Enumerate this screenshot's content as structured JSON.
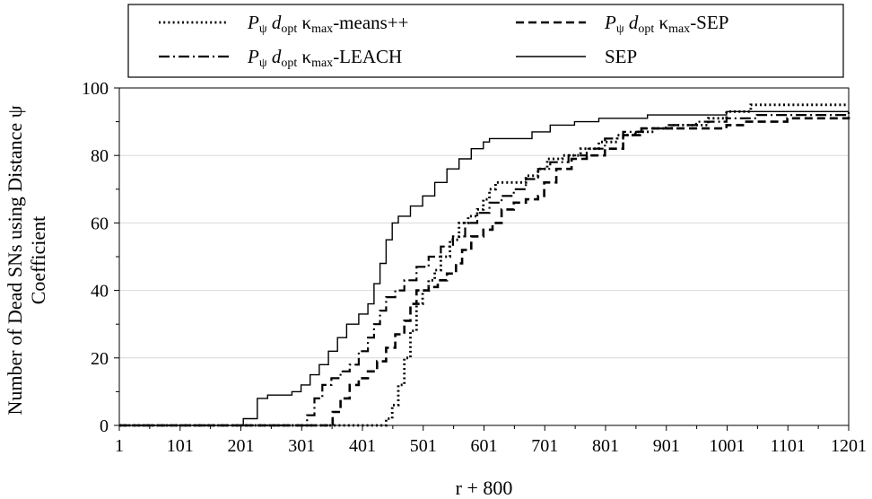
{
  "chart_data": {
    "type": "line",
    "title": "",
    "xlabel": "r + 800",
    "ylabel": [
      "Number of Dead SNs using Distance ψ",
      "Coefficient"
    ],
    "xlim": [
      1,
      1201
    ],
    "ylim": [
      0,
      100
    ],
    "x_ticks": [
      1,
      101,
      201,
      301,
      401,
      501,
      601,
      701,
      801,
      901,
      1001,
      1101,
      1201
    ],
    "y_ticks": [
      0,
      20,
      40,
      60,
      80,
      100
    ],
    "grid": "horizontal",
    "legend": {
      "placement": "top",
      "columns": 2
    },
    "series": [
      {
        "name": "Pψ dopt κmax-means++",
        "legend_parts": {
          "p": "P",
          "p_sub": "ψ",
          "d": "d",
          "d_sub": "opt",
          "k": "κ",
          "k_sub": "max",
          "rest": "-means++"
        },
        "dash": "dotted",
        "points": [
          [
            1,
            0
          ],
          [
            430,
            0
          ],
          [
            440,
            2
          ],
          [
            450,
            6
          ],
          [
            460,
            12
          ],
          [
            470,
            20
          ],
          [
            480,
            28
          ],
          [
            490,
            36
          ],
          [
            500,
            40
          ],
          [
            510,
            43
          ],
          [
            520,
            46
          ],
          [
            530,
            50
          ],
          [
            545,
            55
          ],
          [
            560,
            60
          ],
          [
            575,
            62
          ],
          [
            590,
            64
          ],
          [
            600,
            67
          ],
          [
            610,
            70
          ],
          [
            620,
            72
          ],
          [
            650,
            72
          ],
          [
            670,
            74
          ],
          [
            690,
            76
          ],
          [
            705,
            79
          ],
          [
            730,
            80
          ],
          [
            760,
            82
          ],
          [
            790,
            84
          ],
          [
            820,
            86
          ],
          [
            850,
            87
          ],
          [
            880,
            88
          ],
          [
            910,
            89
          ],
          [
            940,
            89
          ],
          [
            970,
            91
          ],
          [
            1000,
            93
          ],
          [
            1040,
            95
          ],
          [
            1201,
            95
          ]
        ]
      },
      {
        "name": "Pψ dopt κmax-SEP",
        "legend_parts": {
          "p": "P",
          "p_sub": "ψ",
          "d": "d",
          "d_sub": "opt",
          "k": "κ",
          "k_sub": "max",
          "rest": "-SEP"
        },
        "dash": "dashed",
        "points": [
          [
            1,
            0
          ],
          [
            345,
            0
          ],
          [
            352,
            4
          ],
          [
            365,
            8
          ],
          [
            380,
            12
          ],
          [
            395,
            14
          ],
          [
            410,
            16
          ],
          [
            425,
            19
          ],
          [
            440,
            23
          ],
          [
            455,
            27
          ],
          [
            470,
            31
          ],
          [
            480,
            36
          ],
          [
            490,
            40
          ],
          [
            510,
            41
          ],
          [
            525,
            43
          ],
          [
            540,
            45
          ],
          [
            555,
            48
          ],
          [
            565,
            52
          ],
          [
            580,
            56
          ],
          [
            600,
            58
          ],
          [
            615,
            60
          ],
          [
            630,
            64
          ],
          [
            650,
            66
          ],
          [
            670,
            67
          ],
          [
            690,
            68
          ],
          [
            700,
            72
          ],
          [
            720,
            76
          ],
          [
            745,
            79
          ],
          [
            770,
            80
          ],
          [
            800,
            82
          ],
          [
            830,
            86
          ],
          [
            860,
            88
          ],
          [
            900,
            88
          ],
          [
            950,
            88
          ],
          [
            980,
            88
          ],
          [
            1000,
            89
          ],
          [
            1030,
            90
          ],
          [
            1100,
            91
          ],
          [
            1201,
            92
          ]
        ]
      },
      {
        "name": "Pψ dopt κmax-LEACH",
        "legend_parts": {
          "p": "P",
          "p_sub": "ψ",
          "d": "d",
          "d_sub": "opt",
          "k": "κ",
          "k_sub": "max",
          "rest": "-LEACH"
        },
        "dash": "dashdot",
        "points": [
          [
            1,
            0
          ],
          [
            300,
            0
          ],
          [
            310,
            3
          ],
          [
            322,
            8
          ],
          [
            335,
            12
          ],
          [
            350,
            14
          ],
          [
            365,
            16
          ],
          [
            380,
            18
          ],
          [
            395,
            22
          ],
          [
            410,
            26
          ],
          [
            420,
            30
          ],
          [
            430,
            34
          ],
          [
            440,
            38
          ],
          [
            455,
            40
          ],
          [
            470,
            43
          ],
          [
            490,
            47
          ],
          [
            510,
            50
          ],
          [
            530,
            53
          ],
          [
            550,
            56
          ],
          [
            570,
            60
          ],
          [
            590,
            63
          ],
          [
            610,
            66
          ],
          [
            630,
            68
          ],
          [
            650,
            70
          ],
          [
            670,
            73
          ],
          [
            690,
            76
          ],
          [
            710,
            78
          ],
          [
            740,
            80
          ],
          [
            770,
            82
          ],
          [
            800,
            85
          ],
          [
            830,
            87
          ],
          [
            860,
            88
          ],
          [
            900,
            89
          ],
          [
            950,
            90
          ],
          [
            1000,
            91
          ],
          [
            1050,
            92
          ],
          [
            1201,
            93
          ]
        ]
      },
      {
        "name": "SEP",
        "legend_parts": {
          "rest": "SEP"
        },
        "dash": "solid",
        "points": [
          [
            1,
            0
          ],
          [
            200,
            0
          ],
          [
            205,
            2
          ],
          [
            222,
            2
          ],
          [
            228,
            8
          ],
          [
            240,
            8
          ],
          [
            245,
            9
          ],
          [
            280,
            9
          ],
          [
            285,
            10
          ],
          [
            300,
            12
          ],
          [
            315,
            15
          ],
          [
            330,
            18
          ],
          [
            345,
            22
          ],
          [
            360,
            26
          ],
          [
            375,
            30
          ],
          [
            395,
            33
          ],
          [
            410,
            36
          ],
          [
            420,
            42
          ],
          [
            430,
            48
          ],
          [
            440,
            55
          ],
          [
            450,
            60
          ],
          [
            460,
            62
          ],
          [
            480,
            65
          ],
          [
            500,
            68
          ],
          [
            520,
            72
          ],
          [
            540,
            76
          ],
          [
            560,
            79
          ],
          [
            580,
            82
          ],
          [
            600,
            84
          ],
          [
            610,
            85
          ],
          [
            640,
            85
          ],
          [
            680,
            87
          ],
          [
            710,
            89
          ],
          [
            750,
            90
          ],
          [
            790,
            91
          ],
          [
            840,
            91
          ],
          [
            870,
            92
          ],
          [
            980,
            92
          ],
          [
            1000,
            93
          ],
          [
            1201,
            93
          ]
        ]
      }
    ]
  }
}
